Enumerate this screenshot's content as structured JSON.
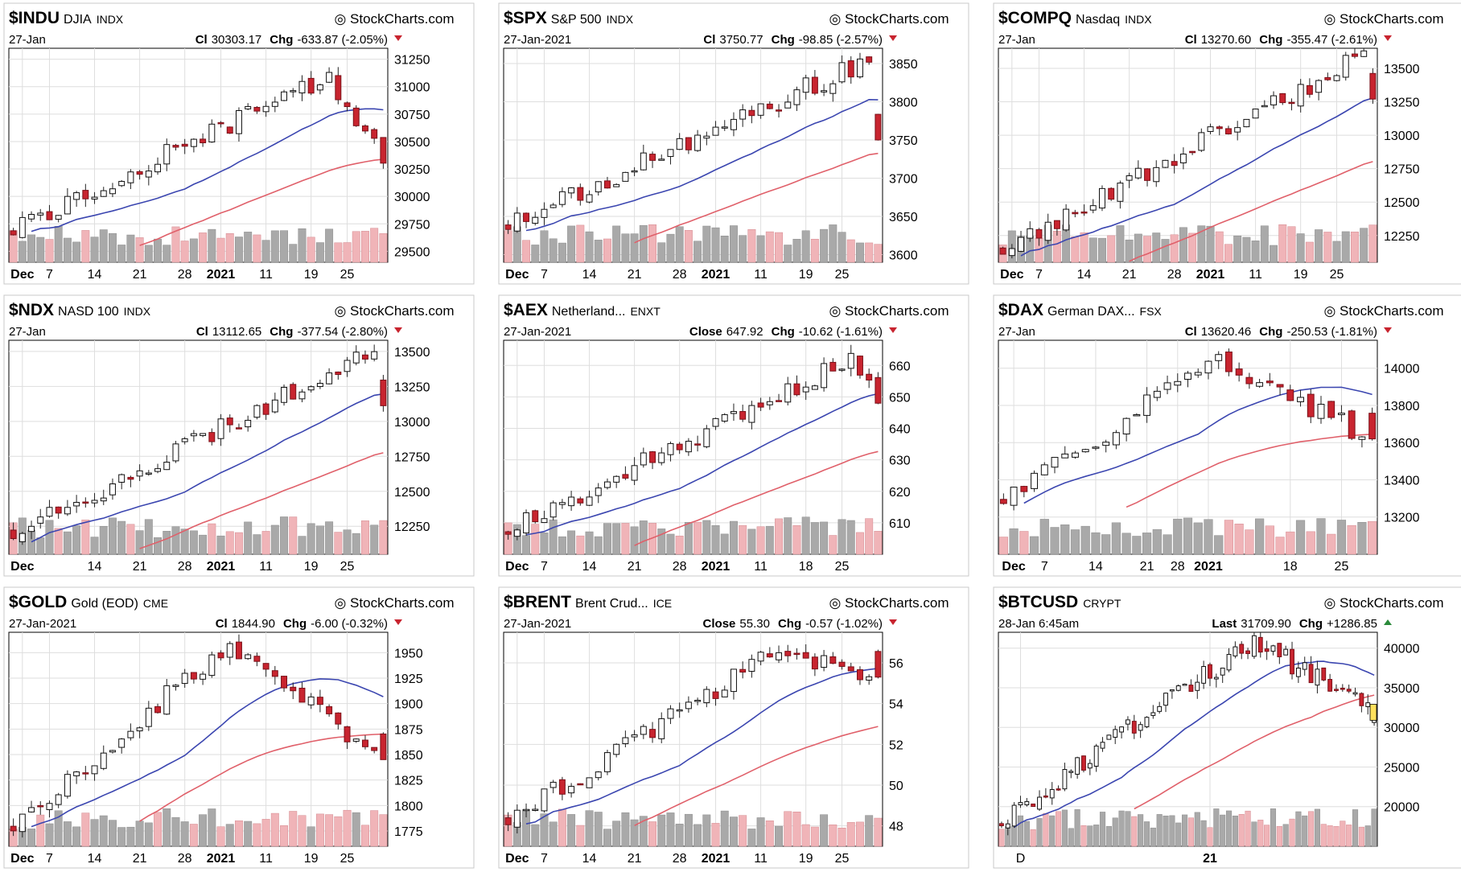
{
  "watermark": "StockCharts.com",
  "colors": {
    "up": "#ffffff",
    "down": "#c8242f",
    "line_short": "#3b46b0",
    "line_long": "#e0606a",
    "vol_up": "#a9a9a9",
    "vol_down": "#f0b4b8",
    "frame": "#000000",
    "grid": "#dedede",
    "badge": "#ffe15c",
    "arrow_down": "#c8242f",
    "arrow_up": "#2a8a3a"
  },
  "chart_data": [
    {
      "type": "candlestick",
      "symbol": "$INDU",
      "name": "DJIA",
      "exchange": "INDX",
      "date": "27-Jan",
      "close_label": "Cl",
      "close": "30303.17",
      "chg_label": "Chg",
      "chg": "-633.87 (-2.05%)",
      "direction": "down",
      "ylim": [
        29400,
        31350
      ],
      "yticks": [
        "31250",
        "31000",
        "30750",
        "30500",
        "30250",
        "30000",
        "29750",
        "29500"
      ],
      "ytick_values": [
        31250,
        31000,
        30750,
        30500,
        30250,
        30000,
        29750,
        29500
      ],
      "xticks": [
        "Dec",
        "7",
        "14",
        "21",
        "28",
        "2021",
        "11",
        "19",
        "25"
      ],
      "bold_xticks": [
        "Dec",
        "2021"
      ],
      "xtick_pos": [
        1,
        4,
        9,
        14,
        19,
        23,
        28,
        33,
        37
      ],
      "n": 42,
      "start": 29700,
      "end": 30303,
      "peak_at": 35,
      "peak": 31100,
      "seed": 11
    },
    {
      "type": "candlestick",
      "symbol": "$SPX",
      "name": "S&P 500",
      "exchange": "INDX",
      "date": "27-Jan-2021",
      "close_label": "Cl",
      "close": "3750.77",
      "chg_label": "Chg",
      "chg": "-98.85 (-2.57%)",
      "direction": "down",
      "ylim": [
        3590,
        3870
      ],
      "yticks": [
        "3850",
        "3800",
        "3750",
        "3700",
        "3650",
        "3600"
      ],
      "ytick_values": [
        3850,
        3800,
        3750,
        3700,
        3650,
        3600
      ],
      "xticks": [
        "Dec",
        "7",
        "14",
        "21",
        "28",
        "2021",
        "11",
        "19",
        "25"
      ],
      "bold_xticks": [
        "Dec",
        "2021"
      ],
      "xtick_pos": [
        1,
        4,
        9,
        14,
        19,
        23,
        28,
        33,
        37
      ],
      "n": 42,
      "start": 3640,
      "end": 3750,
      "peak_at": 40,
      "peak": 3855,
      "seed": 23
    },
    {
      "type": "candlestick",
      "symbol": "$COMPQ",
      "name": "Nasdaq",
      "exchange": "INDX",
      "date": "27-Jan",
      "close_label": "Cl",
      "close": "13270.60",
      "chg_label": "Chg",
      "chg": "-355.47 (-2.61%)",
      "direction": "down",
      "ylim": [
        12050,
        13650
      ],
      "yticks": [
        "13500",
        "13250",
        "13000",
        "12750",
        "12500",
        "12250"
      ],
      "ytick_values": [
        13500,
        13250,
        13000,
        12750,
        12500,
        12250
      ],
      "xticks": [
        "Dec",
        "7",
        "14",
        "21",
        "28",
        "2021",
        "11",
        "19",
        "25"
      ],
      "bold_xticks": [
        "Dec",
        "2021"
      ],
      "xtick_pos": [
        1,
        4,
        9,
        14,
        19,
        23,
        28,
        33,
        37
      ],
      "n": 42,
      "start": 12150,
      "end": 13270,
      "peak_at": 40,
      "peak": 13600,
      "seed": 37
    },
    {
      "type": "candlestick",
      "symbol": "$NDX",
      "name": "NASD 100",
      "exchange": "INDX",
      "date": "27-Jan",
      "close_label": "Cl",
      "close": "13112.65",
      "chg_label": "Chg",
      "chg": "-377.54 (-2.80%)",
      "direction": "down",
      "ylim": [
        12050,
        13580
      ],
      "yticks": [
        "13500",
        "13250",
        "13000",
        "12750",
        "12500",
        "12250"
      ],
      "ytick_values": [
        13500,
        13250,
        13000,
        12750,
        12500,
        12250
      ],
      "xticks": [
        "Dec",
        "14",
        "21",
        "28",
        "2021",
        "11",
        "19",
        "25"
      ],
      "bold_xticks": [
        "Dec",
        "2021"
      ],
      "xtick_pos": [
        1,
        9,
        14,
        19,
        23,
        28,
        33,
        37
      ],
      "n": 42,
      "start": 12200,
      "end": 13112,
      "peak_at": 40,
      "peak": 13500,
      "seed": 41
    },
    {
      "type": "candlestick",
      "symbol": "$AEX",
      "name": "Netherland...",
      "exchange": "ENXT",
      "date": "27-Jan-2021",
      "close_label": "Close",
      "close": "647.92",
      "chg_label": "Chg",
      "chg": "-10.62 (-1.61%)",
      "direction": "down",
      "ylim": [
        600,
        668
      ],
      "yticks": [
        "660",
        "650",
        "640",
        "630",
        "620",
        "610"
      ],
      "ytick_values": [
        660,
        650,
        640,
        630,
        620,
        610
      ],
      "xticks": [
        "Dec",
        "7",
        "14",
        "21",
        "28",
        "2021",
        "11",
        "18",
        "25"
      ],
      "bold_xticks": [
        "Dec",
        "2021"
      ],
      "xtick_pos": [
        1,
        4,
        9,
        14,
        19,
        23,
        28,
        33,
        37
      ],
      "n": 42,
      "start": 608,
      "end": 648,
      "peak_at": 38,
      "peak": 662,
      "seed": 53
    },
    {
      "type": "candlestick",
      "symbol": "$DAX",
      "name": "German DAX...",
      "exchange": "FSX",
      "date": "27-Jan",
      "close_label": "Cl",
      "close": "13620.46",
      "chg_label": "Chg",
      "chg": "-250.53 (-1.81%)",
      "direction": "down",
      "ylim": [
        13000,
        14150
      ],
      "yticks": [
        "14000",
        "13800",
        "13600",
        "13400",
        "13200"
      ],
      "ytick_values": [
        14000,
        13800,
        13600,
        13400,
        13200
      ],
      "xticks": [
        "Dec",
        "7",
        "14",
        "21",
        "28",
        "2021",
        "18",
        "25"
      ],
      "bold_xticks": [
        "Dec",
        "2021"
      ],
      "xtick_pos": [
        1,
        4,
        9,
        14,
        17,
        20,
        28,
        33
      ],
      "n": 37,
      "start": 13300,
      "end": 13620,
      "peak_at": 21,
      "peak": 14050,
      "seed": 67
    },
    {
      "type": "candlestick",
      "symbol": "$GOLD",
      "name": "Gold (EOD)",
      "exchange": "CME",
      "date": "27-Jan-2021",
      "close_label": "Cl",
      "close": "1844.90",
      "chg_label": "Chg",
      "chg": "-6.00 (-0.32%)",
      "direction": "down",
      "ylim": [
        1760,
        1970
      ],
      "yticks": [
        "1950",
        "1925",
        "1900",
        "1875",
        "1850",
        "1825",
        "1800",
        "1775"
      ],
      "ytick_values": [
        1950,
        1925,
        1900,
        1875,
        1850,
        1825,
        1800,
        1775
      ],
      "xticks": [
        "Dec",
        "7",
        "14",
        "21",
        "28",
        "2021",
        "11",
        "19",
        "25"
      ],
      "bold_xticks": [
        "Dec",
        "2021"
      ],
      "xtick_pos": [
        1,
        4,
        9,
        14,
        19,
        23,
        28,
        33,
        37
      ],
      "n": 42,
      "start": 1780,
      "end": 1845,
      "peak_at": 24,
      "peak": 1960,
      "seed": 79
    },
    {
      "type": "candlestick",
      "symbol": "$BRENT",
      "name": "Brent Crud...",
      "exchange": "ICE",
      "date": "27-Jan-2021",
      "close_label": "Close",
      "close": "55.30",
      "chg_label": "Chg",
      "chg": "-0.57 (-1.02%)",
      "direction": "down",
      "ylim": [
        47,
        57.5
      ],
      "yticks": [
        "56",
        "54",
        "52",
        "50",
        "48"
      ],
      "ytick_values": [
        56,
        54,
        52,
        50,
        48
      ],
      "xticks": [
        "Dec",
        "7",
        "14",
        "21",
        "28",
        "2021",
        "11",
        "19",
        "25"
      ],
      "bold_xticks": [
        "Dec",
        "2021"
      ],
      "xtick_pos": [
        1,
        4,
        9,
        14,
        19,
        23,
        28,
        33,
        37
      ],
      "n": 42,
      "start": 48.3,
      "end": 55.3,
      "peak_at": 30,
      "peak": 56.6,
      "seed": 83
    },
    {
      "type": "candlestick",
      "symbol": "$BTCUSD",
      "name": "",
      "exchange": "CRYPT",
      "date": "28-Jan 6:45am",
      "close_label": "Last",
      "close": "31709.90",
      "chg_label": "Chg",
      "chg": "+1286.85",
      "direction": "up",
      "ylim": [
        15000,
        42000
      ],
      "yticks": [
        "40000",
        "35000",
        "30000",
        "25000",
        "20000"
      ],
      "ytick_values": [
        40000,
        35000,
        30000,
        25000,
        20000
      ],
      "xticks": [
        "D",
        "21"
      ],
      "bold_xticks": [
        "21"
      ],
      "xtick_pos": [
        3,
        33
      ],
      "n": 60,
      "start": 18200,
      "end": 31700,
      "peak_at": 40,
      "peak": 41000,
      "seed": 97
    }
  ]
}
